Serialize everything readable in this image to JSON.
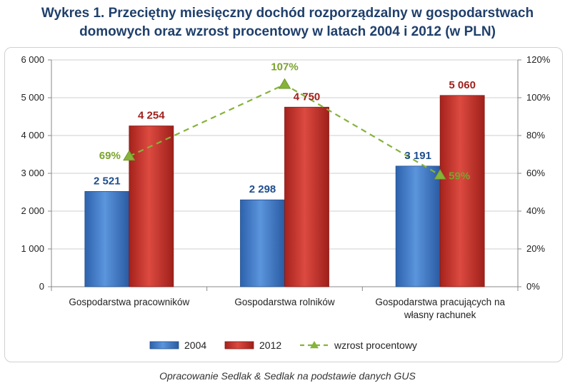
{
  "chart_data": {
    "type": "bar",
    "title_line1": "Wykres 1. Przeciętny miesięczny dochód rozporządzalny w gospodarstwach",
    "title_line2": "domowych oraz wzrost procentowy w latach 2004 i 2012 (w PLN)",
    "categories": [
      [
        "Gospodarstwa pracowników"
      ],
      [
        "Gospodarstwa rolników"
      ],
      [
        "Gospodarstwa pracujących na",
        "własny rachunek"
      ]
    ],
    "series": [
      {
        "name": "2004",
        "values": [
          2521,
          2298,
          3191
        ],
        "labels": [
          "2 521",
          "2 298",
          "3 191"
        ],
        "color": "#3a75c4",
        "label_color": "#1f4e8c"
      },
      {
        "name": "2012",
        "values": [
          4254,
          4750,
          5060
        ],
        "labels": [
          "4 254",
          "4 750",
          "5 060"
        ],
        "color": "#c0302a",
        "label_color": "#a0201c"
      }
    ],
    "line_series": {
      "name": "wzrost procentowy",
      "values": [
        69,
        107,
        59
      ],
      "labels": [
        "69%",
        "107%",
        "59%"
      ],
      "color": "#86b33a",
      "label_color": "#7aa32c"
    },
    "ylim": [
      0,
      6000
    ],
    "y_ticks": [
      0,
      1000,
      2000,
      3000,
      4000,
      5000,
      6000
    ],
    "y_tick_labels": [
      "0",
      "1 000",
      "2 000",
      "3 000",
      "4 000",
      "5 000",
      "6 000"
    ],
    "y2lim": [
      0,
      120
    ],
    "y2_ticks": [
      0,
      20,
      40,
      60,
      80,
      100,
      120
    ],
    "y2_tick_labels": [
      "0%",
      "20%",
      "40%",
      "60%",
      "80%",
      "100%",
      "120%"
    ],
    "grid": true,
    "legend_position": "bottom"
  },
  "source_note": "Opracowanie Sedlak & Sedlak na podstawie danych GUS"
}
